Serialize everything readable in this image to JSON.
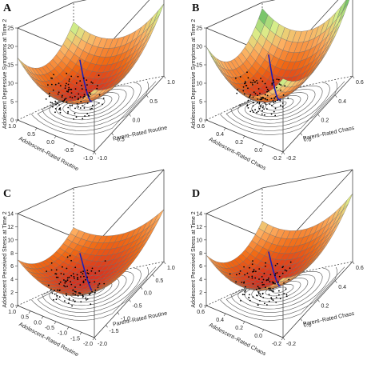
{
  "figure": {
    "colors": {
      "surface_low": "#d7301f",
      "surface_mid": "#f16913",
      "surface_highmid": "#fdae61",
      "surface_high": "#d9ef8b",
      "surface_top": "#66bd63",
      "trend_line": "#1f1fb4",
      "points": "#000000",
      "box": "#333333"
    }
  },
  "chart_data": [
    {
      "panel": "A",
      "type": "surface",
      "zlabel": "Adolescent Depressive Symptoms at Time 2",
      "xlabel": "Parent–Rated Routine",
      "ylabel": "Adolescent–Rated Routine",
      "z_ticks": [
        "0",
        "5",
        "10",
        "15",
        "20",
        "25"
      ],
      "x_ticks": [
        "-1.0",
        "-0.5",
        "0.0",
        "0.5",
        "1.0"
      ],
      "y_ticks": [
        "-1.0",
        "-0.5",
        "0.0",
        "0.5",
        "1.0"
      ],
      "zlim": [
        0,
        25
      ],
      "xlim": [
        -1.0,
        1.0
      ],
      "ylim": [
        -1.0,
        1.0
      ],
      "curvature": 0.5,
      "tilt": 0.0,
      "center_z": 6
    },
    {
      "panel": "B",
      "type": "surface",
      "zlabel": "Adolescent Depressive Symptoms at Time 2",
      "xlabel": "Parent–Rated Chaos",
      "ylabel": "Adolescent–Rated Chaos",
      "z_ticks": [
        "0",
        "5",
        "10",
        "15",
        "20",
        "25"
      ],
      "x_ticks": [
        "-0.2",
        "0.0",
        "0.2",
        "0.4",
        "0.6"
      ],
      "y_ticks": [
        "-0.2",
        "0.0",
        "0.2",
        "0.4",
        "0.6"
      ],
      "zlim": [
        0,
        25
      ],
      "xlim": [
        -0.2,
        0.6
      ],
      "ylim": [
        -0.2,
        0.6
      ],
      "curvature": 0.62,
      "tilt": 0.0,
      "center_z": 6
    },
    {
      "panel": "C",
      "type": "surface",
      "zlabel": "Adolescent Perceived Stress at Time 2",
      "xlabel": "Parent–Rated Routine",
      "ylabel": "Adolescent–Rated Routine",
      "z_ticks": [
        "0",
        "2",
        "4",
        "6",
        "8",
        "10",
        "12",
        "14"
      ],
      "x_ticks": [
        "-2.0",
        "-1.5",
        "-1.0",
        "-0.5",
        "0.0",
        "0.5",
        "1.0"
      ],
      "y_ticks": [
        "-2.0",
        "-1.5",
        "-1.0",
        "-0.5",
        "0.0",
        "0.5",
        "1.0"
      ],
      "zlim": [
        0,
        14
      ],
      "xlim": [
        -2.0,
        1.0
      ],
      "ylim": [
        -2.0,
        1.0
      ],
      "curvature": 0.32,
      "tilt": 0.0,
      "center_z": 6
    },
    {
      "panel": "D",
      "type": "surface",
      "zlabel": "Adolescent Perceived Stress at Time 2",
      "xlabel": "Parent–Rated Chaos",
      "ylabel": "Adolescent–Rated Chaos",
      "z_ticks": [
        "0",
        "2",
        "4",
        "6",
        "8",
        "10",
        "12",
        "14"
      ],
      "x_ticks": [
        "-0.2",
        "0.0",
        "0.2",
        "0.4",
        "0.6"
      ],
      "y_ticks": [
        "-0.2",
        "0.0",
        "0.2",
        "0.4",
        "0.6"
      ],
      "zlim": [
        0,
        14
      ],
      "xlim": [
        -0.2,
        0.6
      ],
      "ylim": [
        -0.2,
        0.6
      ],
      "curvature": 0.42,
      "tilt": 0.25,
      "center_z": 6
    }
  ]
}
